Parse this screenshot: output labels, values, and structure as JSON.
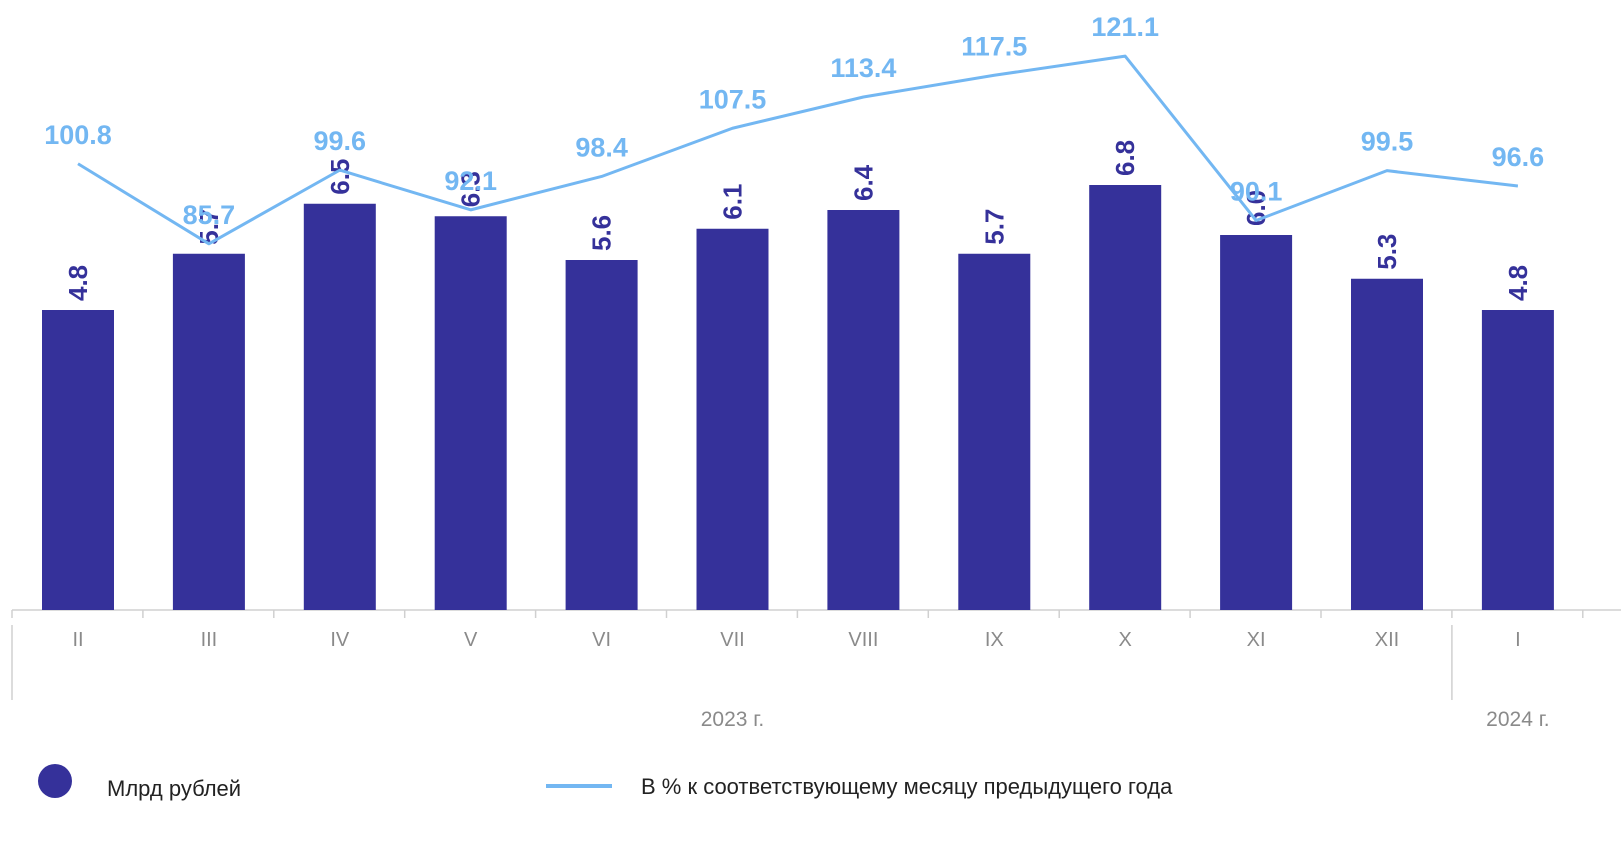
{
  "chart_data": {
    "type": "bar",
    "categories": [
      "II",
      "III",
      "IV",
      "V",
      "VI",
      "VII",
      "VIII",
      "IX",
      "X",
      "XI",
      "XII",
      "I"
    ],
    "year_groups": [
      {
        "label": "2023 г.",
        "from": 0,
        "to": 10
      },
      {
        "label": "2024 г.",
        "from": 11,
        "to": 11
      }
    ],
    "series": [
      {
        "name": "Млрд рублей",
        "type": "bar",
        "color": "#35319a",
        "values": [
          4.8,
          5.7,
          6.5,
          6.3,
          5.6,
          6.1,
          6.4,
          5.7,
          6.8,
          6.0,
          5.3,
          4.8
        ],
        "labels": [
          "4.8",
          "5.7",
          "6.5",
          "6.3",
          "5.6",
          "6.1",
          "6.4",
          "5.7",
          "6.8",
          "6.0",
          "5.3",
          "4.8"
        ]
      },
      {
        "name": "В % к соответствующему месяцу предыдущего года",
        "type": "line",
        "color": "#73b7f2",
        "values": [
          100.8,
          85.7,
          99.6,
          92.1,
          98.4,
          107.5,
          113.4,
          117.5,
          121.1,
          90.1,
          99.5,
          96.6
        ],
        "labels": [
          "100.8",
          "85.7",
          "99.6",
          "92.1",
          "98.4",
          "107.5",
          "113.4",
          "117.5",
          "121.1",
          "90.1",
          "99.5",
          "96.6"
        ]
      }
    ],
    "bar_ylim": [
      0,
      9.6
    ],
    "line_ylim": [
      0,
      155
    ],
    "legend_position": "bottom",
    "grid": false
  }
}
